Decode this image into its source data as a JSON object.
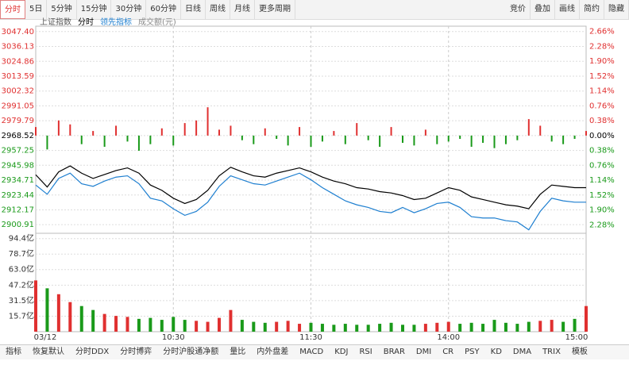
{
  "toolbar": {
    "left": [
      "分时",
      "5日",
      "5分钟",
      "15分钟",
      "30分钟",
      "60分钟",
      "日线",
      "周线",
      "月线",
      "更多周期"
    ],
    "right": [
      "竞价",
      "叠加",
      "画线",
      "简约",
      "隐藏"
    ]
  },
  "bottom_tabs": [
    "指标",
    "恢复默认",
    "分时DDX",
    "分时博弈",
    "分时沪股通净额",
    "量比",
    "内外盘差",
    "MACD",
    "KDJ",
    "RSI",
    "BRAR",
    "DMI",
    "CR",
    "PSY",
    "KD",
    "DMA",
    "TRIX",
    "模板"
  ],
  "chart_data": {
    "type": "intraday",
    "index_name": "上证指数",
    "volume_label": "成交额(元)",
    "categories": [
      "03/12",
      null,
      null,
      null,
      null,
      null,
      null,
      null,
      null,
      null,
      null,
      null,
      "10:30",
      null,
      null,
      null,
      null,
      null,
      null,
      null,
      null,
      null,
      null,
      null,
      "11:30",
      null,
      null,
      null,
      null,
      null,
      null,
      null,
      null,
      null,
      null,
      null,
      "14:00",
      null,
      null,
      null,
      null,
      null,
      null,
      null,
      null,
      null,
      null,
      null,
      "15:00"
    ],
    "ylim": [
      2895,
      3051.5
    ],
    "yticks": [
      {
        "value": 3047.4,
        "label": "3047.40"
      },
      3036.13,
      3024.86,
      3013.59,
      3002.32,
      2991.05,
      2979.79,
      2968.52,
      2957.25,
      2945.98,
      2934.71,
      2923.44,
      2912.17,
      2900.91
    ],
    "y2lim": [
      -2.477,
      2.795
    ],
    "y2ticks": [
      {
        "value": 2.66,
        "label": "2.66%"
      },
      {
        "value": 2.28,
        "label": "2.28%"
      },
      {
        "value": 1.9,
        "label": "1.90%"
      },
      {
        "value": 1.52,
        "label": "1.52%"
      },
      {
        "value": 1.14,
        "label": "1.14%"
      },
      {
        "value": 0.76,
        "label": "0.76%"
      },
      {
        "value": 0.38,
        "label": "0.38%"
      },
      {
        "value": 0,
        "label": "0.00%"
      },
      {
        "value": -0.38,
        "label": "0.38%"
      },
      {
        "value": -0.76,
        "label": "0.76%"
      },
      {
        "value": -1.14,
        "label": "1.14%"
      },
      {
        "value": -1.52,
        "label": "1.52%"
      },
      {
        "value": -1.9,
        "label": "1.90%"
      },
      {
        "value": -2.28,
        "label": "2.28%"
      }
    ],
    "series": [
      {
        "name": "分时",
        "color": "#000000",
        "values": [
          2938.8,
          2929.5,
          2941,
          2945.5,
          2940,
          2936,
          2939,
          2942,
          2944,
          2940,
          2931,
          2927,
          2921,
          2917,
          2920,
          2927,
          2938,
          2944.5,
          2941,
          2938,
          2937,
          2940,
          2942,
          2944,
          2941,
          2937,
          2934,
          2932,
          2929,
          2928,
          2926,
          2925,
          2923,
          2920,
          2921,
          2925,
          2929,
          2927,
          2922,
          2920,
          2918,
          2916,
          2915,
          2913,
          2924,
          2931,
          2930,
          2929,
          2929
        ]
      },
      {
        "name": "领先指标",
        "color": "#1e7fd0",
        "values": [
          2931,
          2924,
          2936,
          2940,
          2932,
          2930,
          2934,
          2937,
          2938,
          2932,
          2921,
          2919,
          2913,
          2908,
          2911,
          2918,
          2930,
          2938,
          2935,
          2932,
          2931,
          2934,
          2937,
          2940,
          2935,
          2929,
          2924,
          2919,
          2916,
          2914,
          2911,
          2910,
          2914,
          2910,
          2913,
          2917,
          2918,
          2914,
          2907,
          2906,
          2906,
          2904,
          2903,
          2897,
          2911,
          2921,
          2919,
          2918,
          2918
        ]
      }
    ],
    "pressure_bars": [
      2975,
      2958,
      2980,
      2977,
      2962,
      2972,
      2960,
      2976,
      2964,
      2957,
      2962,
      2974,
      2961,
      2978,
      2980,
      2990,
      2973,
      2976,
      2965,
      2962,
      2974,
      2966,
      2961,
      2975,
      2960,
      2964,
      2972,
      2962,
      2978,
      2965,
      2960,
      2975,
      2963,
      2961,
      2973,
      2962,
      2964,
      2966,
      2960,
      2963,
      2959,
      2962,
      2965,
      2981,
      2976,
      2964,
      2962,
      2966,
      2972
    ],
    "up_color": "#e03030",
    "down_color": "#1a9a1a",
    "vlim": [
      0,
      99
    ],
    "vticks": [
      {
        "value": 94.4,
        "label": "94.4亿"
      },
      {
        "value": 78.7,
        "label": "78.7亿"
      },
      {
        "value": 63.0,
        "label": "63.0亿"
      },
      {
        "value": 47.2,
        "label": "47.2亿"
      },
      {
        "value": 31.5,
        "label": "31.5亿"
      },
      {
        "value": 15.7,
        "label": "15.7亿"
      }
    ],
    "volume": [
      52,
      44,
      38,
      30,
      26,
      22,
      18,
      16,
      15,
      13,
      14,
      12,
      15,
      12,
      11,
      10,
      14,
      22,
      12,
      10,
      9,
      10,
      11,
      8,
      9,
      8,
      7,
      8,
      7,
      7,
      8,
      9,
      7,
      7,
      8,
      9,
      10,
      8,
      9,
      8,
      12,
      9,
      8,
      10,
      11,
      12,
      10,
      13,
      26
    ],
    "grid": true
  }
}
